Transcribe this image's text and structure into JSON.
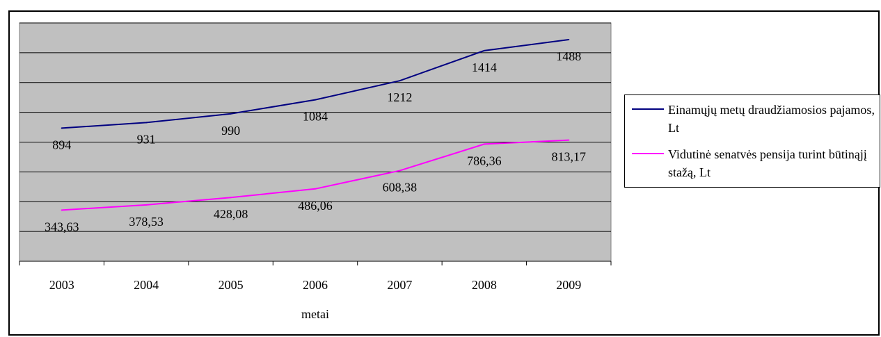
{
  "chart_data": {
    "type": "line",
    "x": [
      "2003",
      "2004",
      "2005",
      "2006",
      "2007",
      "2008",
      "2009"
    ],
    "xlabel": "metai",
    "ylabel": "",
    "title": "",
    "ylim": [
      0,
      1600
    ],
    "grid": true,
    "legend_position": "right",
    "series": [
      {
        "name": "Einamųjų metų draudžiamosios pajamos, Lt",
        "color": "#000080",
        "values": [
          894,
          931,
          990,
          1084,
          1212,
          1414,
          1488
        ],
        "labels": [
          "894",
          "931",
          "990",
          "1084",
          "1212",
          "1414",
          "1488"
        ]
      },
      {
        "name": "Vidutinė senatvės pensija turint būtinąjį stažą, Lt",
        "color": "#ff00ff",
        "values": [
          343.63,
          378.53,
          428.08,
          486.06,
          608.38,
          786.36,
          813.17
        ],
        "labels": [
          "343,63",
          "378,53",
          "428,08",
          "486,06",
          "608,38",
          "786,36",
          "813,17"
        ]
      }
    ]
  },
  "colors": {
    "plot_background": "#c0c0c0",
    "gridline": "#000000"
  }
}
